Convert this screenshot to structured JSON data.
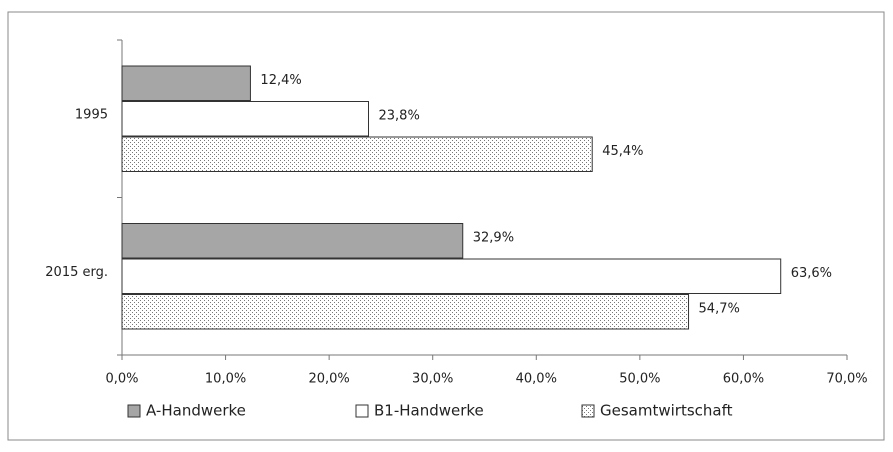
{
  "chart_data": {
    "type": "hbar",
    "categories": [
      "1995",
      "2015 erg."
    ],
    "series": [
      {
        "name": "A-Handwerke",
        "color": "#a6a6a6",
        "values": [
          12.4,
          32.9
        ],
        "value_labels": [
          "12,4%",
          "32,9%"
        ]
      },
      {
        "name": "B1-Handwerke",
        "color": "#ffffff",
        "values": [
          23.8,
          63.6
        ],
        "value_labels": [
          "23,8%",
          "63,6%"
        ]
      },
      {
        "name": "Gesamtwirtschaft",
        "color": "#ffffff",
        "pattern": "dots",
        "values": [
          45.4,
          54.7
        ],
        "value_labels": [
          "45,4%",
          "54,7%"
        ]
      }
    ],
    "xlim": [
      0,
      70
    ],
    "xticks": [
      {
        "value": 0,
        "label": "0,0%"
      },
      {
        "value": 10,
        "label": "10,0%"
      },
      {
        "value": 20,
        "label": "20,0%"
      },
      {
        "value": 30,
        "label": "30,0%"
      },
      {
        "value": 40,
        "label": "40,0%"
      },
      {
        "value": 50,
        "label": "50,0%"
      },
      {
        "value": 60,
        "label": "60,0%"
      },
      {
        "value": 70,
        "label": "70,0%"
      }
    ],
    "legend": "bottom"
  }
}
